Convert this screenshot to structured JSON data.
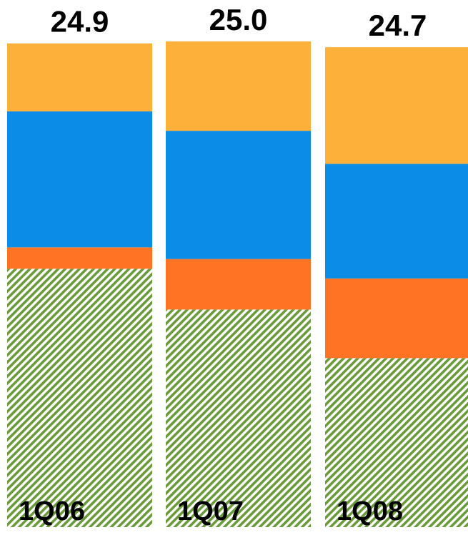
{
  "chart_data": {
    "type": "bar",
    "stacked": true,
    "categories": [
      "1Q06",
      "1Q07",
      "1Q08"
    ],
    "totals": [
      "24.9",
      "25.0",
      "24.7"
    ],
    "series": [
      {
        "values": [
          13.3,
          11.2,
          8.7
        ],
        "color": "#6a9a3a",
        "pattern": "diagonal-hatch"
      },
      {
        "values": [
          1.1,
          2.6,
          4.1
        ],
        "color": "#ff7424"
      },
      {
        "values": [
          7.0,
          6.6,
          5.9
        ],
        "color": "#0b8ce6"
      },
      {
        "values": [
          3.5,
          4.6,
          6.0
        ],
        "color": "#fdb13b"
      }
    ],
    "title": "",
    "xlabel": "",
    "ylabel": "",
    "ylim": [
      0,
      25
    ],
    "grid": false,
    "legend": "none"
  }
}
